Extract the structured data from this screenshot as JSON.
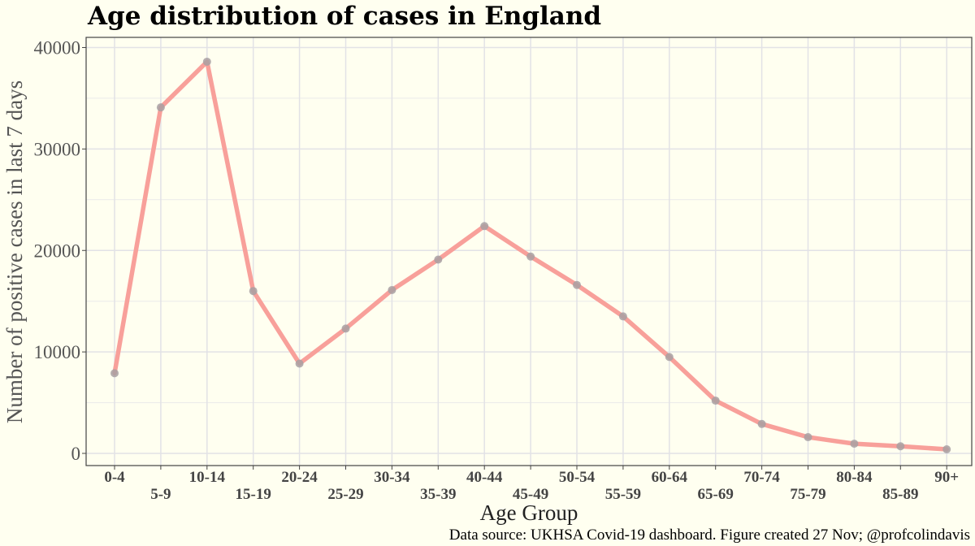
{
  "chart_data": {
    "type": "line",
    "title": "Age distribution of cases in England",
    "xlabel": "Age Group",
    "ylabel": "Number of positive cases in last 7 days",
    "categories": [
      "0-4",
      "5-9",
      "10-14",
      "15-19",
      "20-24",
      "25-29",
      "30-34",
      "35-39",
      "40-44",
      "45-49",
      "50-54",
      "55-59",
      "60-64",
      "65-69",
      "70-74",
      "75-79",
      "80-84",
      "85-89",
      "90+"
    ],
    "series": [
      {
        "values": [
          7900,
          34100,
          38600,
          16000,
          8850,
          12300,
          16100,
          19100,
          22400,
          19400,
          16600,
          13500,
          9500,
          5200,
          2900,
          1600,
          950,
          700,
          400
        ]
      }
    ],
    "yticks": [
      0,
      10000,
      20000,
      30000,
      40000
    ],
    "ylim": [
      -1200,
      41000
    ],
    "grid": true,
    "line_color": "#f8a09a",
    "point_color": "#a8a0a2",
    "background_color": "#fffff0",
    "caption": "Data source: UKHSA Covid-19 dashboard. Figure created 27 Nov; @profcolindavis"
  }
}
